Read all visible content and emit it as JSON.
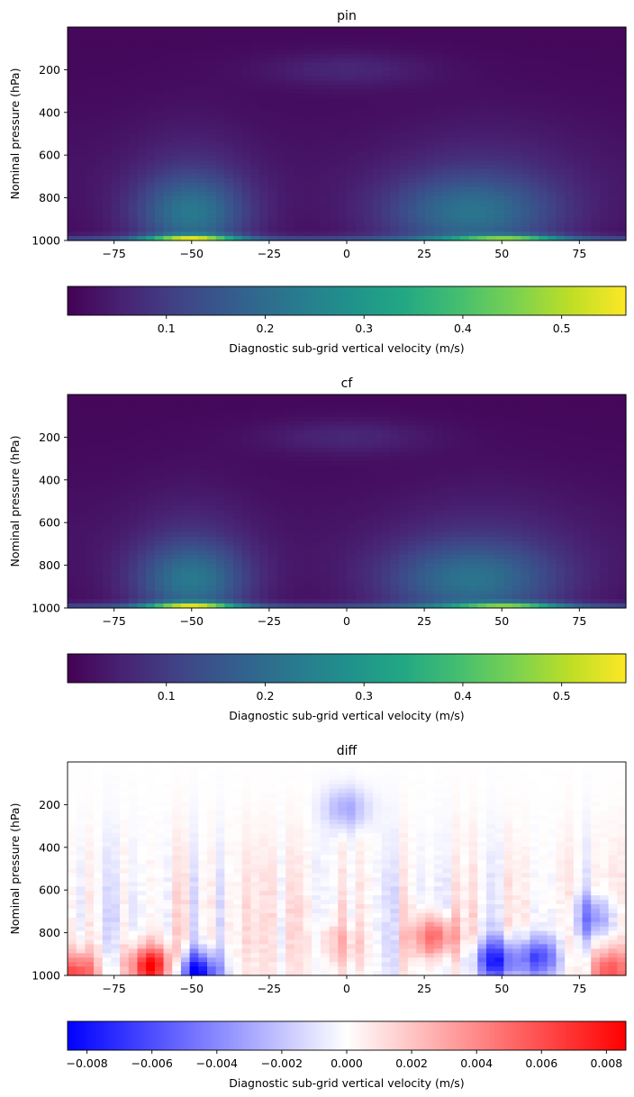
{
  "chart_data": [
    {
      "type": "heatmap",
      "title": "pin",
      "xlabel": "",
      "ylabel": "Nominal pressure (hPa)",
      "xlim": [
        -90,
        90
      ],
      "ylim": [
        1000,
        0
      ],
      "x_ticks": [
        -75,
        -50,
        -25,
        0,
        25,
        50,
        75
      ],
      "y_ticks": [
        200,
        400,
        600,
        800,
        1000
      ],
      "colormap": "viridis",
      "colorbar": {
        "label": "Diagnostic sub-grid vertical velocity (m/s)",
        "range": [
          0.0,
          0.565
        ],
        "ticks": [
          0.1,
          0.2,
          0.3,
          0.4,
          0.5
        ],
        "tick_labels": [
          "0.1",
          "0.2",
          "0.3",
          "0.4",
          "0.5"
        ]
      },
      "features": [
        {
          "lat": -50,
          "pressure": 990,
          "value": 0.56
        },
        {
          "lat": 55,
          "pressure": 990,
          "value": 0.5
        },
        {
          "lat": -50,
          "pressure": 850,
          "value": 0.18
        },
        {
          "lat": 40,
          "pressure": 870,
          "value": 0.17
        },
        {
          "lat": 0,
          "pressure": 200,
          "value": 0.05
        }
      ]
    },
    {
      "type": "heatmap",
      "title": "cf",
      "xlabel": "",
      "ylabel": "Nominal pressure (hPa)",
      "xlim": [
        -90,
        90
      ],
      "ylim": [
        1000,
        0
      ],
      "x_ticks": [
        -75,
        -50,
        -25,
        0,
        25,
        50,
        75
      ],
      "y_ticks": [
        200,
        400,
        600,
        800,
        1000
      ],
      "colormap": "viridis",
      "colorbar": {
        "label": "Diagnostic sub-grid vertical velocity (m/s)",
        "range": [
          0.0,
          0.565
        ],
        "ticks": [
          0.1,
          0.2,
          0.3,
          0.4,
          0.5
        ],
        "tick_labels": [
          "0.1",
          "0.2",
          "0.3",
          "0.4",
          "0.5"
        ]
      },
      "features": [
        {
          "lat": -50,
          "pressure": 990,
          "value": 0.56
        },
        {
          "lat": 55,
          "pressure": 990,
          "value": 0.5
        },
        {
          "lat": -50,
          "pressure": 850,
          "value": 0.18
        },
        {
          "lat": 40,
          "pressure": 870,
          "value": 0.17
        },
        {
          "lat": 0,
          "pressure": 200,
          "value": 0.05
        }
      ]
    },
    {
      "type": "heatmap",
      "title": "diff",
      "xlabel": "",
      "ylabel": "Nominal pressure (hPa)",
      "xlim": [
        -90,
        90
      ],
      "ylim": [
        1000,
        0
      ],
      "x_ticks": [
        -75,
        -50,
        -25,
        0,
        25,
        50,
        75
      ],
      "y_ticks": [
        200,
        400,
        600,
        800,
        1000
      ],
      "colormap": "bwr",
      "colorbar": {
        "label": "Diagnostic sub-grid vertical velocity (m/s)",
        "range": [
          -0.0086,
          0.0086
        ],
        "ticks": [
          -0.008,
          -0.006,
          -0.004,
          -0.002,
          0.0,
          0.002,
          0.004,
          0.006,
          0.008
        ],
        "tick_labels": [
          "−0.008",
          "−0.006",
          "−0.004",
          "−0.002",
          "0.000",
          "0.002",
          "0.004",
          "0.006",
          "0.008"
        ]
      },
      "features": [
        {
          "lat": -63,
          "pressure": 960,
          "value": 0.0085
        },
        {
          "lat": -87,
          "pressure": 985,
          "value": 0.006
        },
        {
          "lat": -48,
          "pressure": 990,
          "value": -0.0085
        },
        {
          "lat": 28,
          "pressure": 820,
          "value": 0.0055
        },
        {
          "lat": 48,
          "pressure": 930,
          "value": -0.007
        },
        {
          "lat": 62,
          "pressure": 920,
          "value": -0.006
        },
        {
          "lat": 85,
          "pressure": 980,
          "value": 0.005
        },
        {
          "lat": 80,
          "pressure": 730,
          "value": -0.004
        },
        {
          "lat": 0,
          "pressure": 220,
          "value": -0.003
        },
        {
          "lat": -3,
          "pressure": 850,
          "value": 0.002
        }
      ]
    }
  ]
}
